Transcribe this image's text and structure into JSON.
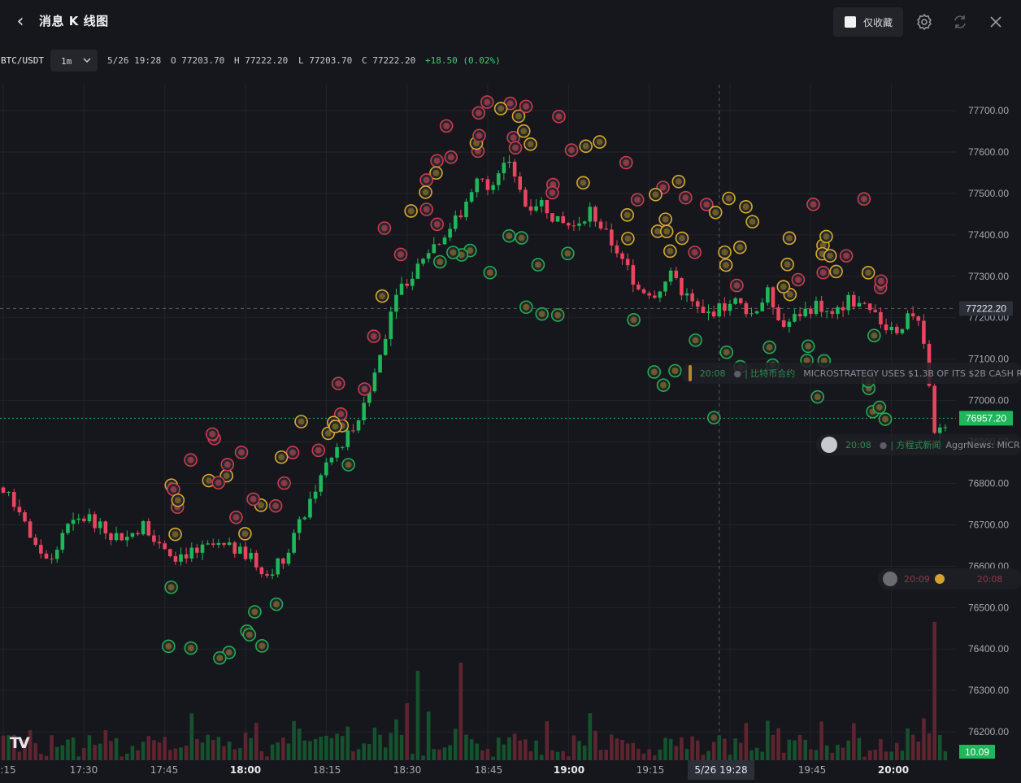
{
  "header": {
    "title": "消息 K 线图",
    "favorites_only_label": "仅收藏",
    "favorites_only_checked": false
  },
  "info_bar": {
    "symbol": "BTC/USDT",
    "interval": "1m",
    "datetime": "5/26 19:28",
    "open": "O 77203.70",
    "high": "H 77222.20",
    "low": "L 77203.70",
    "close": "C 77222.20",
    "change": "+18.50 (0.02%)"
  },
  "news_items": [
    {
      "time": "20:08",
      "text": "| 比特币合约",
      "headline": "MICROSTRATEGY USES $1.3B OF ITS $2B CASH R",
      "color": "green"
    },
    {
      "time": "20:08",
      "text": "| 方程式新闻",
      "headline": "AggrNews: MICR",
      "color": "green"
    },
    {
      "time": "20:09",
      "text": "",
      "headline": "20:08",
      "color": "red"
    }
  ],
  "chart_data": {
    "type": "candlestick",
    "symbol": "BTC/USDT",
    "interval": "1m",
    "y_ticks": [
      77700,
      77600,
      77500,
      77400,
      77300,
      77200,
      77100,
      77000,
      76900,
      76800,
      76700,
      76600,
      76500,
      76400,
      76300,
      76200
    ],
    "y_tick_labels": [
      "77700.00",
      "77600.00",
      "77500.00",
      "77400.00",
      "77300.00",
      "77200.00",
      "77100.00",
      "77000.00",
      "76900.00",
      "76800.00",
      "76700.00",
      "76600.00",
      "76500.00",
      "76400.00",
      "76300.00",
      "76200.00"
    ],
    "x_tick_labels": [
      ":15",
      "17:30",
      "17:45",
      "18:00",
      "18:15",
      "18:30",
      "18:45",
      "19:00",
      "19:15",
      "19:45",
      "20:00"
    ],
    "x_tick_bold": [
      false,
      false,
      false,
      true,
      false,
      false,
      false,
      true,
      false,
      false,
      true
    ],
    "crosshair_time": "5/26 19:28",
    "crosshair_price": "77222.20",
    "last_price": "76957.20",
    "volume_last": "10.09",
    "grid": true,
    "up_color": "#1fb75a",
    "down_color": "#e8455f",
    "anchors": [
      [
        "17:11",
        76690
      ],
      [
        "17:14",
        76790
      ],
      [
        "17:18",
        76740
      ],
      [
        "17:21",
        76640
      ],
      [
        "17:24",
        76620
      ],
      [
        "17:27",
        76695
      ],
      [
        "17:31",
        76720
      ],
      [
        "17:34",
        76680
      ],
      [
        "17:38",
        76670
      ],
      [
        "17:41",
        76700
      ],
      [
        "17:44",
        76660
      ],
      [
        "17:47",
        76625
      ],
      [
        "17:51",
        76635
      ],
      [
        "17:54",
        76650
      ],
      [
        "17:58",
        76640
      ],
      [
        "18:01",
        76620
      ],
      [
        "18:04",
        76580
      ],
      [
        "18:07",
        76620
      ],
      [
        "18:10",
        76700
      ],
      [
        "18:13",
        76790
      ],
      [
        "18:16",
        76860
      ],
      [
        "18:19",
        76920
      ],
      [
        "18:22",
        76980
      ],
      [
        "18:25",
        77110
      ],
      [
        "18:28",
        77270
      ],
      [
        "18:31",
        77300
      ],
      [
        "18:33",
        77350
      ],
      [
        "18:36",
        77390
      ],
      [
        "18:40",
        77450
      ],
      [
        "18:43",
        77530
      ],
      [
        "18:46",
        77520
      ],
      [
        "18:49",
        77580
      ],
      [
        "18:52",
        77470
      ],
      [
        "18:55",
        77480
      ],
      [
        "18:58",
        77430
      ],
      [
        "19:01",
        77420
      ],
      [
        "19:04",
        77460
      ],
      [
        "19:07",
        77400
      ],
      [
        "19:10",
        77340
      ],
      [
        "19:13",
        77270
      ],
      [
        "19:16",
        77260
      ],
      [
        "19:19",
        77300
      ],
      [
        "19:22",
        77250
      ],
      [
        "19:25",
        77205
      ],
      [
        "19:28",
        77222
      ],
      [
        "19:31",
        77240
      ],
      [
        "19:34",
        77210
      ],
      [
        "19:37",
        77260
      ],
      [
        "19:40",
        77180
      ],
      [
        "19:43",
        77210
      ],
      [
        "19:46",
        77230
      ],
      [
        "19:49",
        77200
      ],
      [
        "19:52",
        77245
      ],
      [
        "19:55",
        77220
      ],
      [
        "19:58",
        77190
      ],
      [
        "20:01",
        77170
      ],
      [
        "20:04",
        77210
      ],
      [
        "20:06",
        77150
      ],
      [
        "20:08",
        76930
      ],
      [
        "20:10",
        76950
      ]
    ],
    "volume_spikes": [
      [
        "18:30",
        70
      ],
      [
        "18:32",
        110
      ],
      [
        "18:40",
        120
      ],
      [
        "20:08",
        170
      ],
      [
        "18:34",
        60
      ]
    ]
  }
}
